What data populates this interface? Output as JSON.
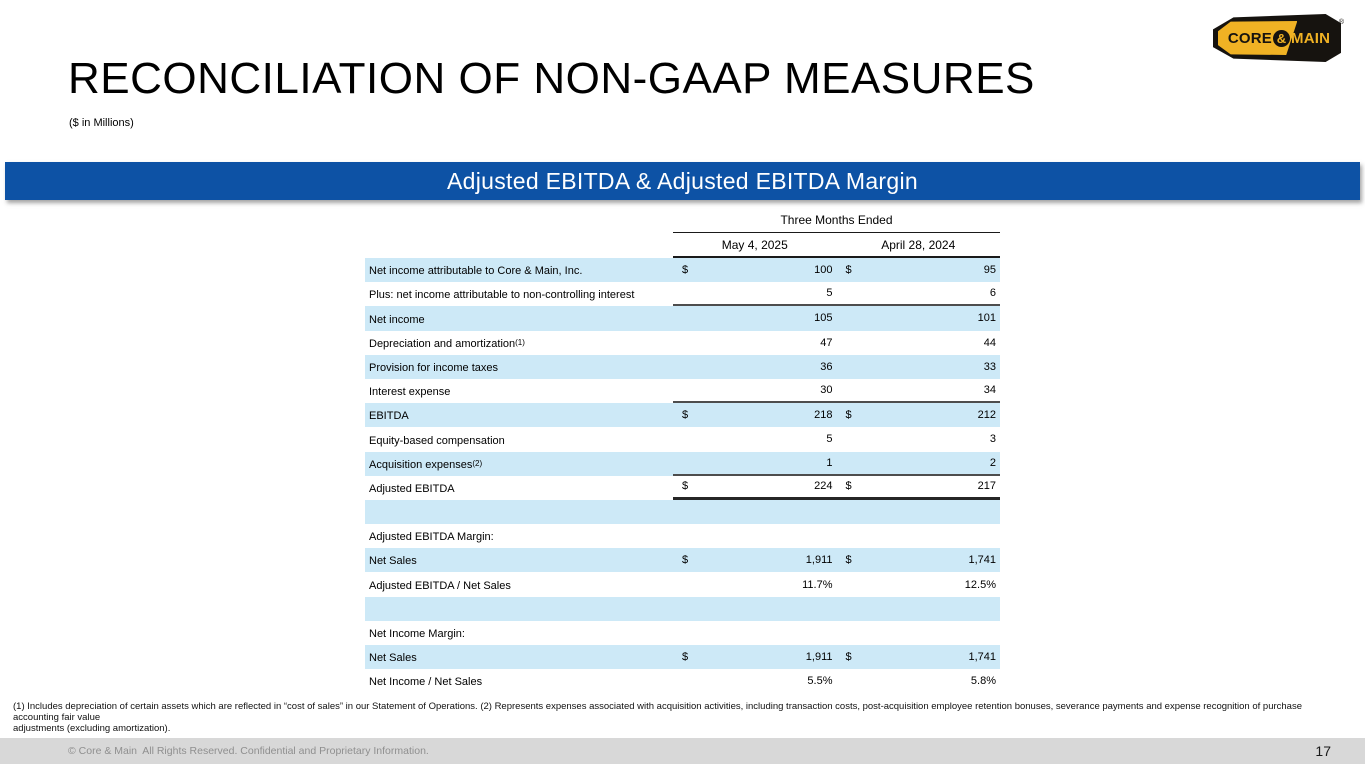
{
  "logo": {
    "text_left": "CORE",
    "amp": "&",
    "text_right": "MAIN",
    "reg": "®",
    "gold_color": "#F0B224",
    "black_color": "#16130F"
  },
  "header": {
    "title": "RECONCILIATION OF NON-GAAP MEASURES",
    "subtitle": "($ in Millions)"
  },
  "banner": {
    "label": "Adjusted EBITDA & Adjusted EBITDA Margin",
    "color": "#0D52A5"
  },
  "table": {
    "period_header": "Three Months Ended",
    "columns": [
      "May 4, 2025",
      "April 28, 2024"
    ],
    "shade_color": "#CDE9F7",
    "rows": [
      {
        "label": "Net income attributable to Core & Main, Inc.",
        "cur1": "$",
        "v1": "100",
        "cur2": "$",
        "v2": "95",
        "shaded": true
      },
      {
        "label": "Plus: net income attributable to non-controlling interest",
        "v1": "5",
        "v2": "6",
        "border": "med"
      },
      {
        "label": "Net income",
        "v1": "105",
        "v2": "101",
        "shaded": true
      },
      {
        "label": "Depreciation and amortization",
        "sup": "(1)",
        "v1": "47",
        "v2": "44"
      },
      {
        "label": "Provision for income taxes",
        "v1": "36",
        "v2": "33",
        "shaded": true
      },
      {
        "label": "Interest expense",
        "v1": "30",
        "v2": "34",
        "border": "med"
      },
      {
        "label": "EBITDA",
        "cur1": "$",
        "v1": "218",
        "cur2": "$",
        "v2": "212",
        "shaded": true
      },
      {
        "label": "Equity-based compensation",
        "v1": "5",
        "v2": "3"
      },
      {
        "label": "Acquisition expenses",
        "sup": "(2)",
        "v1": "1",
        "v2": "2",
        "shaded": true,
        "border": "med"
      },
      {
        "label": "Adjusted EBITDA",
        "cur1": "$",
        "v1": "224",
        "cur2": "$",
        "v2": "217",
        "border": "thick"
      },
      {
        "label": "",
        "shaded": true
      },
      {
        "label": "Adjusted EBITDA Margin:"
      },
      {
        "label": "Net Sales",
        "cur1": "$",
        "v1": "1,911",
        "cur2": "$",
        "v2": "1,741",
        "shaded": true
      },
      {
        "label": "Adjusted EBITDA / Net Sales",
        "v1": "11.7%",
        "v2": "12.5%"
      },
      {
        "label": "",
        "shaded": true
      },
      {
        "label": "Net Income Margin:"
      },
      {
        "label": "Net Sales",
        "cur1": "$",
        "v1": "1,911",
        "cur2": "$",
        "v2": "1,741",
        "shaded": true
      },
      {
        "label": "Net Income / Net Sales",
        "v1": "5.5%",
        "v2": "5.8%"
      }
    ]
  },
  "footnote": {
    "line1": "(1) Includes depreciation of certain assets which are reflected in “cost of sales” in our Statement of Operations. (2) Represents expenses associated with acquisition activities, including transaction costs, post-acquisition employee retention bonuses, severance payments and expense recognition of purchase accounting fair value",
    "line2": "adjustments (excluding amortization)."
  },
  "footer": {
    "copyright": "© Core & Main  All Rights Reserved. Confidential and Proprietary Information.",
    "page_number": "17"
  }
}
